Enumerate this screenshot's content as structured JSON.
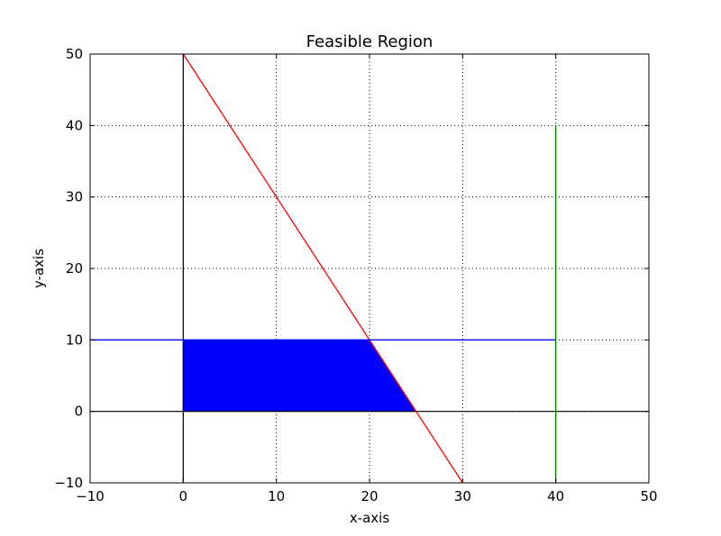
{
  "chart_data": {
    "type": "line",
    "title": "Feasible Region",
    "xlabel": "x-axis",
    "ylabel": "y-axis",
    "xlim": [
      -10,
      50
    ],
    "ylim": [
      -10,
      50
    ],
    "xticks": [
      -10,
      0,
      10,
      20,
      30,
      40,
      50
    ],
    "yticks": [
      -10,
      0,
      10,
      20,
      30,
      40,
      50
    ],
    "xtick_labels": [
      "−10",
      "0",
      "10",
      "20",
      "30",
      "40",
      "50"
    ],
    "ytick_labels": [
      "−10",
      "0",
      "10",
      "20",
      "30",
      "40",
      "50"
    ],
    "grid": true,
    "series": [
      {
        "color": "#ff0000",
        "points": [
          [
            0,
            50
          ],
          [
            30,
            -10
          ]
        ]
      },
      {
        "color": "#0000ff",
        "points": [
          [
            -10,
            10
          ],
          [
            40,
            10
          ]
        ]
      },
      {
        "color": "#008000",
        "points": [
          [
            40,
            -10
          ],
          [
            40,
            40
          ]
        ]
      }
    ],
    "reference_lines": [
      {
        "color": "#000000",
        "points": [
          [
            0,
            -10
          ],
          [
            0,
            50
          ]
        ]
      },
      {
        "color": "#000000",
        "points": [
          [
            -10,
            0
          ],
          [
            50,
            0
          ]
        ]
      }
    ],
    "filled_region": {
      "color": "#0000ff",
      "points": [
        [
          0,
          0
        ],
        [
          0,
          10
        ],
        [
          20,
          10
        ],
        [
          25,
          0
        ]
      ]
    }
  }
}
